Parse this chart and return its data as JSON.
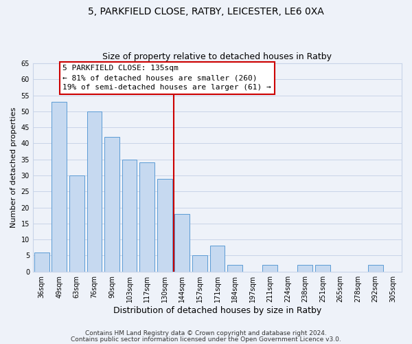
{
  "title": "5, PARKFIELD CLOSE, RATBY, LEICESTER, LE6 0XA",
  "subtitle": "Size of property relative to detached houses in Ratby",
  "xlabel": "Distribution of detached houses by size in Ratby",
  "ylabel": "Number of detached properties",
  "bar_labels": [
    "36sqm",
    "49sqm",
    "63sqm",
    "76sqm",
    "90sqm",
    "103sqm",
    "117sqm",
    "130sqm",
    "144sqm",
    "157sqm",
    "171sqm",
    "184sqm",
    "197sqm",
    "211sqm",
    "224sqm",
    "238sqm",
    "251sqm",
    "265sqm",
    "278sqm",
    "292sqm",
    "305sqm"
  ],
  "bar_values": [
    6,
    53,
    30,
    50,
    42,
    35,
    34,
    29,
    18,
    5,
    8,
    2,
    0,
    2,
    0,
    2,
    2,
    0,
    0,
    2,
    0
  ],
  "bar_color": "#c6d9f0",
  "bar_edge_color": "#5b9bd5",
  "grid_color": "#c8d4e8",
  "background_color": "#eef2f9",
  "vline_x": 7.5,
  "vline_color": "#cc0000",
  "annotation_title": "5 PARKFIELD CLOSE: 135sqm",
  "annotation_line1": "← 81% of detached houses are smaller (260)",
  "annotation_line2": "19% of semi-detached houses are larger (61) →",
  "annotation_box_color": "#ffffff",
  "annotation_border_color": "#cc0000",
  "ylim": [
    0,
    65
  ],
  "yticks": [
    0,
    5,
    10,
    15,
    20,
    25,
    30,
    35,
    40,
    45,
    50,
    55,
    60,
    65
  ],
  "footer1": "Contains HM Land Registry data © Crown copyright and database right 2024.",
  "footer2": "Contains public sector information licensed under the Open Government Licence v3.0.",
  "title_fontsize": 10,
  "subtitle_fontsize": 9,
  "tick_fontsize": 7,
  "ylabel_fontsize": 8,
  "xlabel_fontsize": 9,
  "annotation_fontsize": 8,
  "footer_fontsize": 6.5
}
